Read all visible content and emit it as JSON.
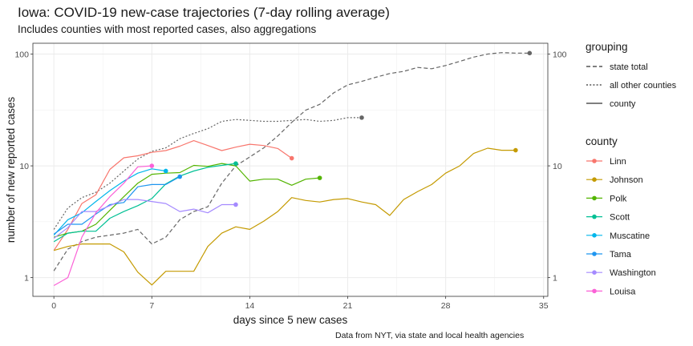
{
  "title": "Iowa: COVID-19 new-case trajectories (7-day rolling average)",
  "subtitle": "Includes counties with most reported cases, also aggregations",
  "caption": "Data from NYT, via state and local health agencies",
  "chart_data": {
    "type": "line",
    "xlabel": "days since 5 new cases",
    "ylabel": "number of new reported cases",
    "xlim": [
      -1.5,
      35.3
    ],
    "ylim": [
      0.68,
      125
    ],
    "y_scale": "log10",
    "x_ticks": [
      0,
      7,
      14,
      21,
      28,
      35
    ],
    "y_ticks": [
      1,
      10,
      100
    ],
    "y_tick_labels": [
      "1",
      "10",
      "100"
    ],
    "grid": true,
    "legend_placement": "right",
    "legends": [
      {
        "title": "grouping",
        "entries": [
          {
            "label": "state total",
            "linetype": "dashed"
          },
          {
            "label": "all other counties",
            "linetype": "dotted"
          },
          {
            "label": "county",
            "linetype": "solid"
          }
        ]
      },
      {
        "title": "county",
        "entries": [
          {
            "label": "Linn",
            "color": "#F8766D"
          },
          {
            "label": "Johnson",
            "color": "#C49A00"
          },
          {
            "label": "Polk",
            "color": "#53B400"
          },
          {
            "label": "Scott",
            "color": "#00C094"
          },
          {
            "label": "Muscatine",
            "color": "#00B6EB"
          },
          {
            "label": "Tama",
            "color": "#1F96F0"
          },
          {
            "label": "Washington",
            "color": "#A58AFF"
          },
          {
            "label": "Louisa",
            "color": "#FB61D7"
          }
        ]
      }
    ],
    "series": [
      {
        "name": "state total",
        "group": "state total",
        "color": "#666666",
        "dash": "dashed",
        "x": [
          0,
          1,
          2,
          3,
          4,
          5,
          6,
          7,
          8,
          9,
          10,
          11,
          12,
          13,
          14,
          15,
          16,
          17,
          18,
          19,
          20,
          21,
          22,
          23,
          24,
          25,
          26,
          27,
          28,
          29,
          30,
          31,
          32,
          33,
          34
        ],
        "y": [
          1.15,
          1.8,
          2.1,
          2.3,
          2.4,
          2.5,
          2.7,
          2.0,
          2.3,
          3.3,
          3.9,
          4.3,
          7.0,
          10.0,
          12.0,
          14.5,
          18.5,
          24.5,
          31.5,
          35.5,
          45,
          53,
          57,
          62,
          67,
          70,
          76,
          74,
          79,
          86,
          94,
          100,
          103,
          102,
          102
        ],
        "end_marker": true
      },
      {
        "name": "all other counties",
        "group": "all other counties",
        "color": "#666666",
        "dash": "dotted",
        "x": [
          0,
          1,
          2,
          3,
          4,
          5,
          6,
          7,
          8,
          9,
          10,
          11,
          12,
          13,
          14,
          15,
          16,
          17,
          18,
          19,
          20,
          21,
          22
        ],
        "y": [
          2.7,
          4.2,
          5.2,
          5.8,
          7.0,
          9.0,
          11.5,
          13.5,
          14.5,
          17.5,
          19.5,
          21.5,
          25,
          26,
          25.5,
          25,
          25,
          25.5,
          26,
          25,
          25.5,
          27,
          27
        ],
        "end_marker": true
      },
      {
        "name": "Linn",
        "group": "county",
        "color": "#F8766D",
        "dash": "solid",
        "x": [
          0,
          1,
          2,
          3,
          4,
          5,
          6,
          7,
          8,
          9,
          10,
          11,
          12,
          13,
          14,
          15,
          16,
          17
        ],
        "y": [
          1.75,
          2.7,
          4.6,
          5.5,
          9.3,
          11.8,
          12.3,
          13.2,
          13.7,
          15.0,
          16.8,
          15.2,
          13.7,
          14.7,
          15.6,
          15.2,
          14.3,
          11.7
        ],
        "end_marker": true
      },
      {
        "name": "Johnson",
        "group": "county",
        "color": "#C49A00",
        "dash": "solid",
        "x": [
          0,
          1,
          2,
          3,
          4,
          5,
          6,
          7,
          8,
          9,
          10,
          11,
          12,
          13,
          14,
          15,
          16,
          17,
          18,
          19,
          20,
          21,
          22,
          23,
          24,
          25,
          26,
          27,
          28,
          29,
          30,
          31,
          32,
          33
        ],
        "y": [
          1.75,
          1.9,
          2.0,
          2.0,
          2.0,
          1.7,
          1.12,
          0.86,
          1.14,
          1.14,
          1.14,
          1.9,
          2.5,
          2.85,
          2.7,
          3.2,
          3.9,
          5.2,
          4.9,
          4.75,
          5.0,
          5.1,
          4.75,
          4.5,
          3.6,
          5.0,
          5.9,
          6.8,
          8.6,
          10.0,
          12.9,
          14.4,
          13.8,
          13.8
        ],
        "end_marker": true
      },
      {
        "name": "Polk",
        "group": "county",
        "color": "#53B400",
        "dash": "solid",
        "x": [
          0,
          1,
          2,
          3,
          4,
          5,
          6,
          7,
          8,
          9,
          10,
          11,
          12,
          13,
          14,
          15,
          16,
          17,
          18,
          19
        ],
        "y": [
          2.3,
          2.5,
          2.6,
          3.0,
          4.0,
          5.3,
          7.0,
          8.4,
          8.6,
          8.7,
          10.1,
          9.9,
          10.5,
          10.0,
          7.3,
          7.6,
          7.6,
          6.7,
          7.6,
          7.8
        ],
        "end_marker": true
      },
      {
        "name": "Scott",
        "group": "county",
        "color": "#00C094",
        "dash": "solid",
        "x": [
          0,
          1,
          2,
          3,
          4,
          5,
          6,
          7,
          8,
          9,
          10,
          11,
          12,
          13
        ],
        "y": [
          2.1,
          2.5,
          2.6,
          2.6,
          3.4,
          3.9,
          4.4,
          5.1,
          6.9,
          8.1,
          9.0,
          9.7,
          10.1,
          10.5
        ],
        "end_marker": true
      },
      {
        "name": "Muscatine",
        "group": "county",
        "color": "#00B6EB",
        "dash": "solid",
        "x": [
          0,
          1,
          2,
          3,
          4,
          5,
          6,
          7,
          8
        ],
        "y": [
          2.4,
          3.3,
          3.8,
          4.8,
          6.0,
          7.3,
          8.6,
          9.4,
          9.0
        ],
        "end_marker": true
      },
      {
        "name": "Tama",
        "group": "county",
        "color": "#1F96F0",
        "dash": "solid",
        "x": [
          0,
          1,
          2,
          3,
          4,
          5,
          6,
          7,
          8,
          9
        ],
        "y": [
          2.45,
          3.0,
          3.0,
          3.7,
          4.5,
          4.7,
          6.5,
          6.8,
          6.8,
          8.0
        ],
        "end_marker": true
      },
      {
        "name": "Washington",
        "group": "county",
        "color": "#A58AFF",
        "dash": "solid",
        "x": [
          0,
          1,
          2,
          3,
          4,
          5,
          6,
          7,
          8,
          9,
          10,
          11,
          12,
          13
        ],
        "y": [
          2.25,
          2.8,
          3.9,
          3.9,
          4.4,
          5.0,
          5.0,
          4.8,
          4.6,
          3.9,
          4.1,
          3.8,
          4.5,
          4.5
        ],
        "end_marker": true
      },
      {
        "name": "Louisa",
        "group": "county",
        "color": "#FB61D7",
        "dash": "solid",
        "x": [
          0,
          1,
          2,
          3,
          4,
          5,
          6,
          7
        ],
        "y": [
          0.85,
          1.0,
          2.3,
          3.8,
          5.3,
          7.0,
          9.8,
          10.0
        ],
        "end_marker": true
      }
    ]
  }
}
